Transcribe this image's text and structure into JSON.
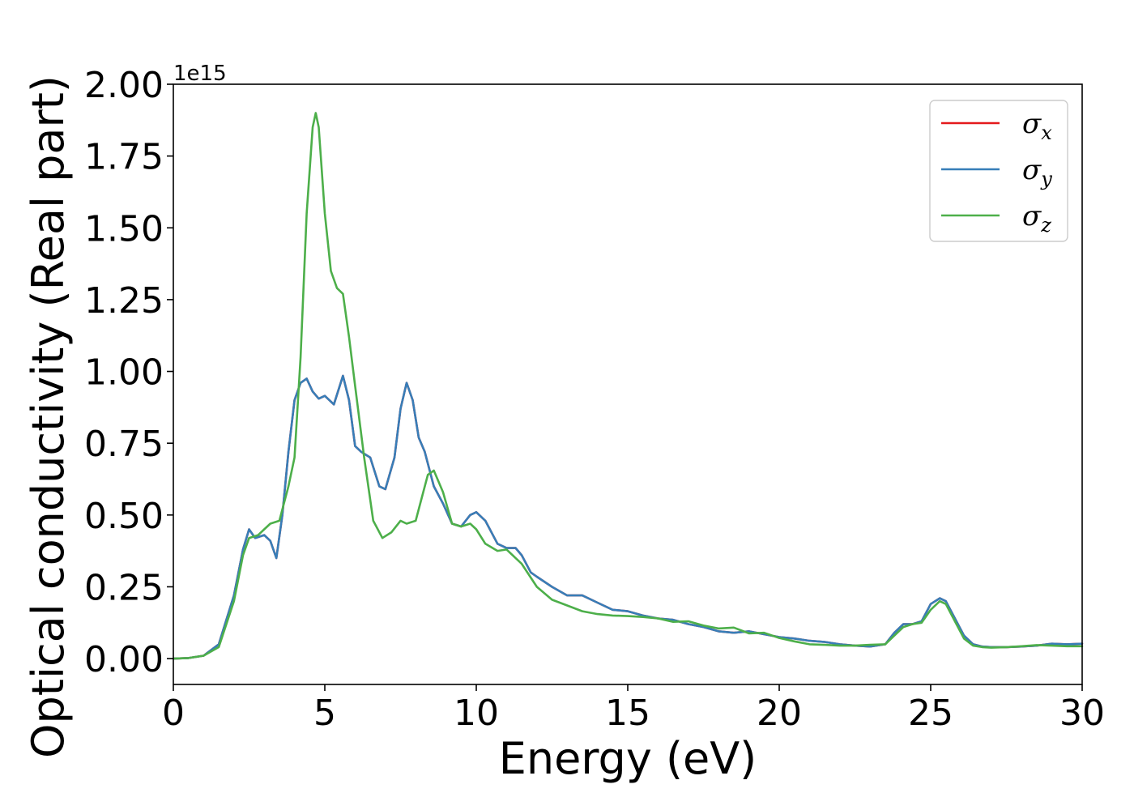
{
  "chart_data": {
    "type": "line",
    "xlabel": "Energy (eV)",
    "ylabel": "Optical conductivity (Real part)",
    "y_offset_label": "1e15",
    "xlim": [
      0,
      30
    ],
    "ylim": [
      -0.09,
      2.0
    ],
    "x_ticks": [
      0,
      5,
      10,
      15,
      20,
      25,
      30
    ],
    "x_tick_labels": [
      "0",
      "5",
      "10",
      "15",
      "20",
      "25",
      "30"
    ],
    "y_ticks": [
      0.0,
      0.25,
      0.5,
      0.75,
      1.0,
      1.25,
      1.5,
      1.75,
      2.0
    ],
    "y_tick_labels": [
      "0.00",
      "0.25",
      "0.50",
      "0.75",
      "1.00",
      "1.25",
      "1.50",
      "1.75",
      "2.00"
    ],
    "grid": false,
    "legend_position": "top-right",
    "legend": [
      {
        "symbol": "σ",
        "sub": "x",
        "color": "#e41a1c"
      },
      {
        "symbol": "σ",
        "sub": "y",
        "color": "#377eb8"
      },
      {
        "symbol": "σ",
        "sub": "z",
        "color": "#4daf4a"
      }
    ],
    "series": [
      {
        "name": "σx",
        "color": "#e41a1c",
        "x": [
          0,
          0.5,
          1.0,
          1.5,
          2.0,
          2.3,
          2.5,
          2.7,
          3.0,
          3.2,
          3.4,
          3.6,
          3.8,
          4.0,
          4.2,
          4.4,
          4.6,
          4.8,
          5.0,
          5.3,
          5.6,
          5.8,
          6.0,
          6.2,
          6.5,
          6.8,
          7.0,
          7.3,
          7.5,
          7.7,
          7.9,
          8.1,
          8.3,
          8.6,
          8.9,
          9.2,
          9.5,
          9.8,
          10.0,
          10.3,
          10.7,
          11.0,
          11.3,
          11.5,
          11.8,
          12.0,
          12.5,
          13.0,
          13.5,
          14.0,
          14.5,
          15.0,
          15.5,
          16.0,
          16.5,
          17.0,
          17.5,
          18.0,
          18.5,
          19.0,
          19.5,
          20.0,
          20.5,
          21.0,
          21.5,
          22.0,
          22.5,
          23.0,
          23.5,
          23.8,
          24.1,
          24.4,
          24.7,
          25.0,
          25.3,
          25.5,
          25.8,
          26.1,
          26.4,
          26.7,
          27.0,
          27.5,
          28.0,
          28.5,
          29.0,
          29.5,
          30.0
        ],
        "y": [
          0.0,
          0.002,
          0.01,
          0.05,
          0.22,
          0.38,
          0.45,
          0.42,
          0.43,
          0.41,
          0.35,
          0.5,
          0.72,
          0.9,
          0.96,
          0.975,
          0.93,
          0.905,
          0.915,
          0.885,
          0.985,
          0.9,
          0.74,
          0.72,
          0.7,
          0.6,
          0.59,
          0.7,
          0.87,
          0.96,
          0.9,
          0.77,
          0.72,
          0.6,
          0.54,
          0.47,
          0.46,
          0.5,
          0.51,
          0.48,
          0.4,
          0.385,
          0.385,
          0.36,
          0.3,
          0.285,
          0.25,
          0.22,
          0.22,
          0.195,
          0.17,
          0.165,
          0.15,
          0.14,
          0.135,
          0.12,
          0.11,
          0.095,
          0.09,
          0.095,
          0.085,
          0.075,
          0.07,
          0.062,
          0.058,
          0.05,
          0.045,
          0.042,
          0.05,
          0.09,
          0.12,
          0.12,
          0.13,
          0.19,
          0.21,
          0.2,
          0.14,
          0.08,
          0.05,
          0.042,
          0.04,
          0.04,
          0.042,
          0.045,
          0.052,
          0.05,
          0.052
        ]
      },
      {
        "name": "σy",
        "color": "#377eb8",
        "x": [
          0,
          0.5,
          1.0,
          1.5,
          2.0,
          2.3,
          2.5,
          2.7,
          3.0,
          3.2,
          3.4,
          3.6,
          3.8,
          4.0,
          4.2,
          4.4,
          4.6,
          4.8,
          5.0,
          5.3,
          5.6,
          5.8,
          6.0,
          6.2,
          6.5,
          6.8,
          7.0,
          7.3,
          7.5,
          7.7,
          7.9,
          8.1,
          8.3,
          8.6,
          8.9,
          9.2,
          9.5,
          9.8,
          10.0,
          10.3,
          10.7,
          11.0,
          11.3,
          11.5,
          11.8,
          12.0,
          12.5,
          13.0,
          13.5,
          14.0,
          14.5,
          15.0,
          15.5,
          16.0,
          16.5,
          17.0,
          17.5,
          18.0,
          18.5,
          19.0,
          19.5,
          20.0,
          20.5,
          21.0,
          21.5,
          22.0,
          22.5,
          23.0,
          23.5,
          23.8,
          24.1,
          24.4,
          24.7,
          25.0,
          25.3,
          25.5,
          25.8,
          26.1,
          26.4,
          26.7,
          27.0,
          27.5,
          28.0,
          28.5,
          29.0,
          29.5,
          30.0
        ],
        "y": [
          0.0,
          0.002,
          0.01,
          0.05,
          0.22,
          0.38,
          0.45,
          0.42,
          0.43,
          0.41,
          0.35,
          0.5,
          0.72,
          0.9,
          0.96,
          0.975,
          0.93,
          0.905,
          0.915,
          0.885,
          0.985,
          0.9,
          0.74,
          0.72,
          0.7,
          0.6,
          0.59,
          0.7,
          0.87,
          0.96,
          0.9,
          0.77,
          0.72,
          0.6,
          0.54,
          0.47,
          0.46,
          0.5,
          0.51,
          0.48,
          0.4,
          0.385,
          0.385,
          0.36,
          0.3,
          0.285,
          0.25,
          0.22,
          0.22,
          0.195,
          0.17,
          0.165,
          0.15,
          0.14,
          0.135,
          0.12,
          0.11,
          0.095,
          0.09,
          0.095,
          0.085,
          0.075,
          0.07,
          0.062,
          0.058,
          0.05,
          0.045,
          0.042,
          0.05,
          0.09,
          0.12,
          0.12,
          0.13,
          0.19,
          0.21,
          0.2,
          0.14,
          0.08,
          0.05,
          0.042,
          0.04,
          0.04,
          0.042,
          0.045,
          0.052,
          0.05,
          0.052
        ]
      },
      {
        "name": "σz",
        "color": "#4daf4a",
        "x": [
          0,
          0.5,
          1.0,
          1.5,
          2.0,
          2.3,
          2.5,
          2.8,
          3.0,
          3.2,
          3.5,
          3.8,
          4.0,
          4.2,
          4.4,
          4.6,
          4.7,
          4.8,
          5.0,
          5.2,
          5.4,
          5.6,
          5.8,
          6.0,
          6.3,
          6.6,
          6.9,
          7.2,
          7.5,
          7.7,
          8.0,
          8.2,
          8.4,
          8.6,
          8.9,
          9.2,
          9.5,
          9.8,
          10.0,
          10.3,
          10.7,
          11.0,
          11.5,
          12.0,
          12.5,
          13.0,
          13.5,
          14.0,
          14.5,
          15.0,
          15.5,
          16.0,
          16.5,
          17.0,
          17.5,
          18.0,
          18.5,
          19.0,
          19.5,
          20.0,
          20.5,
          21.0,
          21.5,
          22.0,
          22.5,
          23.0,
          23.5,
          23.8,
          24.1,
          24.4,
          24.7,
          25.0,
          25.3,
          25.5,
          25.8,
          26.1,
          26.4,
          26.7,
          27.0,
          27.5,
          28.0,
          28.5,
          29.0,
          29.5,
          30.0
        ],
        "y": [
          0.0,
          0.002,
          0.01,
          0.04,
          0.2,
          0.36,
          0.42,
          0.43,
          0.45,
          0.47,
          0.48,
          0.6,
          0.7,
          1.05,
          1.55,
          1.85,
          1.9,
          1.85,
          1.55,
          1.35,
          1.29,
          1.27,
          1.12,
          0.95,
          0.7,
          0.48,
          0.42,
          0.44,
          0.48,
          0.47,
          0.48,
          0.56,
          0.64,
          0.655,
          0.58,
          0.47,
          0.46,
          0.47,
          0.45,
          0.4,
          0.375,
          0.38,
          0.33,
          0.25,
          0.205,
          0.185,
          0.165,
          0.155,
          0.15,
          0.148,
          0.145,
          0.14,
          0.128,
          0.13,
          0.115,
          0.105,
          0.108,
          0.088,
          0.09,
          0.072,
          0.06,
          0.05,
          0.048,
          0.045,
          0.045,
          0.048,
          0.05,
          0.08,
          0.11,
          0.12,
          0.125,
          0.17,
          0.2,
          0.19,
          0.13,
          0.07,
          0.045,
          0.04,
          0.038,
          0.04,
          0.043,
          0.047,
          0.045,
          0.043,
          0.043
        ]
      }
    ]
  }
}
